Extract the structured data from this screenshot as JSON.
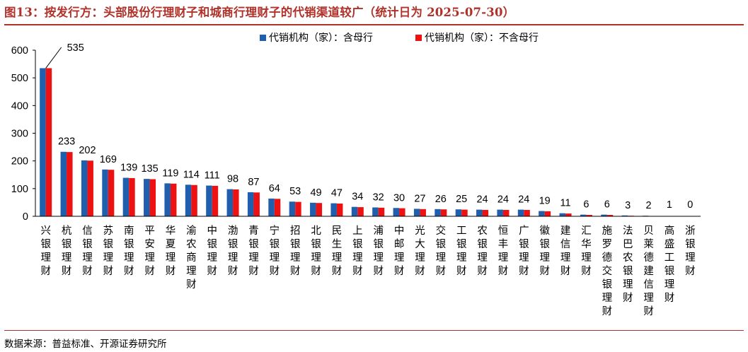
{
  "title": "图13：按发行方：头部股份行理财子和城商行理财子的代销渠道较广（统计日为 2025-07-30）",
  "source": "数据来源：普益标准、开源证券研究所",
  "colors": {
    "series1": "#1f5fae",
    "series2": "#ee1111",
    "title": "#b0322a"
  },
  "chart_data": {
    "type": "bar",
    "title": "",
    "xlabel": "",
    "ylabel": "",
    "ylim": [
      0,
      600
    ],
    "yticks": [
      0,
      100,
      200,
      300,
      400,
      500,
      600
    ],
    "grid": false,
    "legend": "top-right",
    "categories": [
      "兴银理财",
      "杭银理财",
      "信银理财",
      "苏银理财",
      "南银理财",
      "平安理财",
      "华夏理财",
      "渝农商理财",
      "中银理财",
      "渤银理财",
      "青银理财",
      "宁银理财",
      "招银理财",
      "北银理财",
      "民生理财",
      "上银理财",
      "浦银理财",
      "中邮理财",
      "光大理财",
      "交银理财",
      "工银理财",
      "农银理财",
      "恒丰理财",
      "广银理财",
      "徽银理财",
      "建信理财",
      "汇华理财",
      "施罗德交银理财",
      "法巴农银理财",
      "贝莱德建信理财",
      "高盛工银理财",
      "浙银理财"
    ],
    "series": [
      {
        "name": "代销机构（家）：含母行",
        "values": [
          535,
          233,
          202,
          169,
          139,
          135,
          119,
          114,
          111,
          98,
          87,
          64,
          53,
          49,
          47,
          34,
          32,
          30,
          27,
          26,
          25,
          24,
          24,
          24,
          19,
          11,
          6,
          6,
          3,
          2,
          1,
          0
        ]
      },
      {
        "name": "代销机构（家）：不含母行",
        "values": [
          535,
          232,
          201,
          168,
          138,
          134,
          118,
          113,
          110,
          97,
          86,
          63,
          52,
          48,
          46,
          33,
          31,
          29,
          26,
          25,
          24,
          23,
          23,
          23,
          18,
          10,
          5,
          5,
          2,
          1,
          0,
          0
        ]
      }
    ],
    "data_labels": [
      535,
      233,
      202,
      169,
      139,
      135,
      119,
      114,
      111,
      98,
      87,
      64,
      53,
      49,
      47,
      34,
      32,
      30,
      27,
      26,
      25,
      24,
      24,
      24,
      19,
      11,
      6,
      6,
      3,
      2,
      1,
      0
    ]
  }
}
